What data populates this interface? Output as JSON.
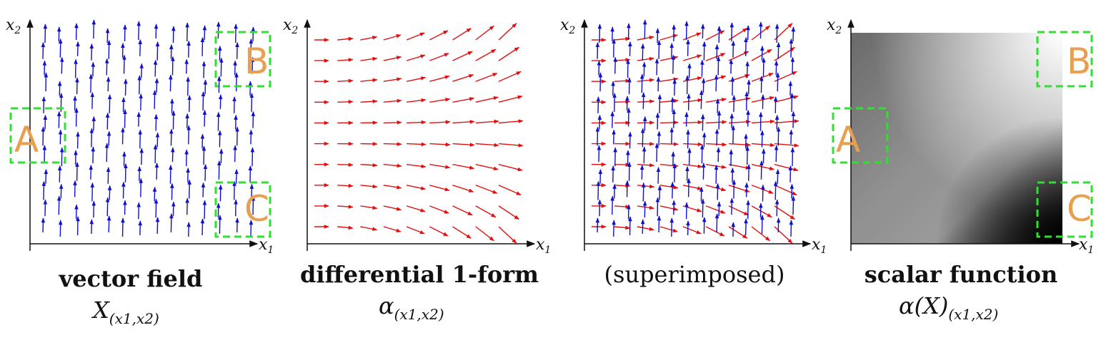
{
  "panels": [
    {
      "id": "vector-field",
      "caption_bold": "vector field",
      "caption_plain": "",
      "math_main": "X",
      "math_sub": "(x1,x2)",
      "regions": [
        {
          "letter": "A"
        },
        {
          "letter": "B"
        },
        {
          "letter": "C"
        }
      ]
    },
    {
      "id": "one-form",
      "caption_bold": "differential 1-form",
      "caption_plain": "",
      "math_main": "α",
      "math_sub": "(x1,x2)",
      "regions": []
    },
    {
      "id": "superimposed",
      "caption_bold": "",
      "caption_plain": "(superimposed)",
      "math_main": "",
      "math_sub": "",
      "regions": []
    },
    {
      "id": "scalar",
      "caption_bold": "scalar function",
      "caption_plain": "",
      "math_main": "α(X)",
      "math_sub": "(x1,x2)",
      "regions": [
        {
          "letter": "A"
        },
        {
          "letter": "B"
        },
        {
          "letter": "C"
        }
      ]
    }
  ],
  "axes": {
    "x_label": "x",
    "x_sub": "1",
    "y_label": "x",
    "y_sub": "2"
  },
  "colors": {
    "vector_arrows": "#1010c8",
    "form_arrows": "#e01010",
    "region_box": "#33dd33",
    "region_letter": "#e8a050",
    "axis": "#111111"
  }
}
